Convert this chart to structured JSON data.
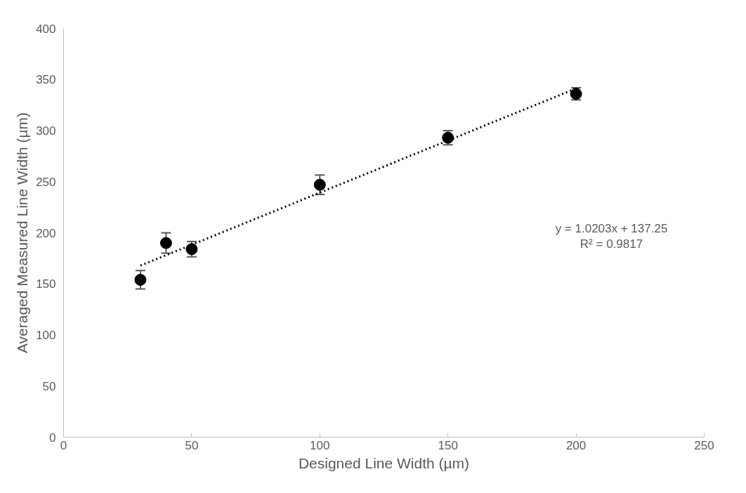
{
  "chart_data": {
    "type": "scatter",
    "xlabel": "Designed Line Width (µm)",
    "ylabel": "Averaged Measured Line Width (µm)",
    "x": [
      30,
      40,
      50,
      100,
      150,
      200
    ],
    "series": [
      {
        "color": "#000000",
        "marker": "circle",
        "values": [
          154,
          190,
          184,
          247,
          293,
          336
        ],
        "errors": [
          9,
          10,
          7.5,
          9.5,
          7,
          6
        ]
      },
      {
        "type": "line",
        "color": "#000000",
        "line_style": "dotted",
        "marker": "none",
        "x": [
          30,
          200
        ],
        "values": [
          167.9,
          341.3
        ]
      }
    ],
    "xlim": [
      0,
      250
    ],
    "xticks": [
      0,
      50,
      100,
      150,
      200,
      250
    ],
    "ylim": [
      0,
      400
    ],
    "yticks": [
      0,
      50,
      100,
      150,
      200,
      250,
      300,
      350,
      400
    ],
    "grid": false,
    "annotations": [
      "y = 1.0203x + 137.25\nR² = 0.9817"
    ]
  }
}
